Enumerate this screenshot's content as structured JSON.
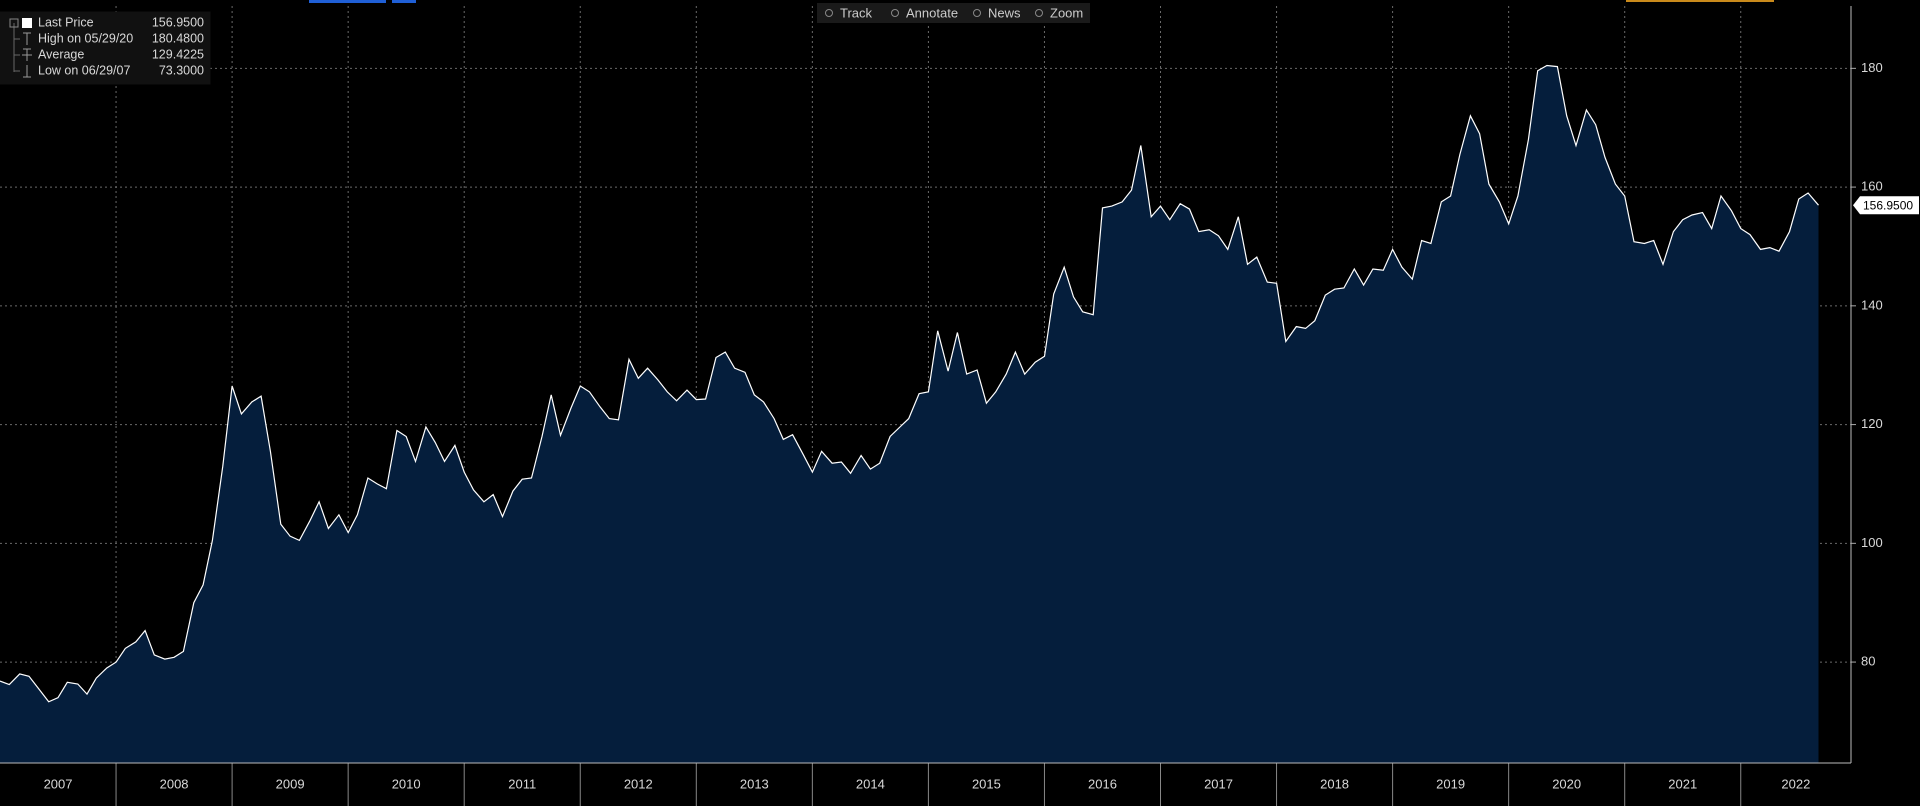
{
  "chart_data": {
    "type": "area",
    "x": [
      2007.0,
      2007.08,
      2007.17,
      2007.25,
      2007.33,
      2007.42,
      2007.5,
      2007.58,
      2007.67,
      2007.75,
      2007.83,
      2007.92,
      2008.0,
      2008.08,
      2008.17,
      2008.25,
      2008.33,
      2008.42,
      2008.5,
      2008.58,
      2008.67,
      2008.75,
      2008.83,
      2008.92,
      2009.0,
      2009.08,
      2009.17,
      2009.25,
      2009.33,
      2009.42,
      2009.5,
      2009.58,
      2009.67,
      2009.75,
      2009.83,
      2009.92,
      2010.0,
      2010.08,
      2010.17,
      2010.25,
      2010.33,
      2010.42,
      2010.5,
      2010.58,
      2010.67,
      2010.75,
      2010.83,
      2010.92,
      2011.0,
      2011.08,
      2011.17,
      2011.25,
      2011.33,
      2011.42,
      2011.5,
      2011.58,
      2011.67,
      2011.75,
      2011.83,
      2011.92,
      2012.0,
      2012.08,
      2012.17,
      2012.25,
      2012.33,
      2012.42,
      2012.5,
      2012.58,
      2012.67,
      2012.75,
      2012.83,
      2012.92,
      2013.0,
      2013.08,
      2013.17,
      2013.25,
      2013.33,
      2013.42,
      2013.5,
      2013.58,
      2013.67,
      2013.75,
      2013.83,
      2013.92,
      2014.0,
      2014.08,
      2014.17,
      2014.25,
      2014.33,
      2014.42,
      2014.5,
      2014.58,
      2014.67,
      2014.75,
      2014.83,
      2014.92,
      2015.0,
      2015.08,
      2015.17,
      2015.25,
      2015.33,
      2015.42,
      2015.5,
      2015.58,
      2015.67,
      2015.75,
      2015.83,
      2015.92,
      2016.0,
      2016.08,
      2016.17,
      2016.25,
      2016.33,
      2016.42,
      2016.5,
      2016.58,
      2016.67,
      2016.75,
      2016.83,
      2016.92,
      2017.0,
      2017.08,
      2017.17,
      2017.25,
      2017.33,
      2017.42,
      2017.5,
      2017.58,
      2017.67,
      2017.75,
      2017.83,
      2017.92,
      2018.0,
      2018.08,
      2018.17,
      2018.25,
      2018.33,
      2018.42,
      2018.5,
      2018.58,
      2018.67,
      2018.75,
      2018.83,
      2018.92,
      2019.0,
      2019.08,
      2019.17,
      2019.25,
      2019.33,
      2019.42,
      2019.5,
      2019.58,
      2019.67,
      2019.75,
      2019.83,
      2019.92,
      2020.0,
      2020.08,
      2020.17,
      2020.25,
      2020.33,
      2020.42,
      2020.5,
      2020.58,
      2020.67,
      2020.75,
      2020.83,
      2020.92,
      2021.0,
      2021.08,
      2021.17,
      2021.25,
      2021.33,
      2021.42,
      2021.5,
      2021.58,
      2021.67,
      2021.75,
      2021.83,
      2021.92,
      2022.0,
      2022.08,
      2022.17,
      2022.25,
      2022.33,
      2022.42,
      2022.5,
      2022.58,
      2022.67
    ],
    "series": [
      {
        "name": "Last Price",
        "color": "#ffffff",
        "fill": "#051e3c",
        "values": [
          76.8,
          76.2,
          78.0,
          77.6,
          75.6,
          73.3,
          74.0,
          76.6,
          76.3,
          74.6,
          77.3,
          79.0,
          80.0,
          82.3,
          83.4,
          85.3,
          81.2,
          80.5,
          80.8,
          81.8,
          90.0,
          93.0,
          100.5,
          113.0,
          126.5,
          121.8,
          123.8,
          124.8,
          115.5,
          103.2,
          101.2,
          100.5,
          103.8,
          107.0,
          102.5,
          104.8,
          101.8,
          104.8,
          111.0,
          110.0,
          109.2,
          119.0,
          118.0,
          113.8,
          119.6,
          117.0,
          113.8,
          116.5,
          112.0,
          109.0,
          107.0,
          108.2,
          104.5,
          108.8,
          110.8,
          111.0,
          118.0,
          125.0,
          118.2,
          122.8,
          126.5,
          125.5,
          123.0,
          121.0,
          120.8,
          131.0,
          127.8,
          129.5,
          127.5,
          125.5,
          124.0,
          125.8,
          124.2,
          124.3,
          131.3,
          132.2,
          129.5,
          128.8,
          125.0,
          123.8,
          121.0,
          117.5,
          118.3,
          115.0,
          112.0,
          115.5,
          113.5,
          113.7,
          111.8,
          114.8,
          112.5,
          113.5,
          118.0,
          119.5,
          121.0,
          125.2,
          125.5,
          135.8,
          129.0,
          135.5,
          128.5,
          129.2,
          123.6,
          125.5,
          128.5,
          132.2,
          128.5,
          130.5,
          131.5,
          142.0,
          146.5,
          141.5,
          139.0,
          138.5,
          156.5,
          156.8,
          157.5,
          159.5,
          167.0,
          155.0,
          156.8,
          154.5,
          157.2,
          156.3,
          152.5,
          152.8,
          151.8,
          149.5,
          155.0,
          147.0,
          148.2,
          144.0,
          143.8,
          134.0,
          136.5,
          136.2,
          137.5,
          141.8,
          142.8,
          143.0,
          146.2,
          143.5,
          146.2,
          146.0,
          149.5,
          146.5,
          144.5,
          151.0,
          150.5,
          157.5,
          158.5,
          165.5,
          172.0,
          169.0,
          160.5,
          157.5,
          153.8,
          158.5,
          168.0,
          179.6,
          180.48,
          180.3,
          172.0,
          167.0,
          173.0,
          170.5,
          165.0,
          160.5,
          158.5,
          150.8,
          150.5,
          151.0,
          147.0,
          152.5,
          154.5,
          155.3,
          155.7,
          153.0,
          158.5,
          156.0,
          153.0,
          152.0,
          149.5,
          149.8,
          149.2,
          152.5,
          158.0,
          159.0,
          156.95
        ]
      }
    ],
    "xlim": [
      2007,
      2022.95
    ],
    "xticks": [
      2007,
      2008,
      2009,
      2010,
      2011,
      2012,
      2013,
      2014,
      2015,
      2016,
      2017,
      2018,
      2019,
      2020,
      2021,
      2022
    ],
    "ylim": [
      63,
      190.5
    ],
    "yticks": [
      80,
      100,
      120,
      140,
      160,
      180
    ],
    "grid": true
  },
  "stats": [
    {
      "label": "Last Price",
      "value": "156.9500"
    },
    {
      "label": "High on 05/29/20",
      "value": "180.4800"
    },
    {
      "label": "Average",
      "value": "129.4225"
    },
    {
      "label": "Low on 06/29/07",
      "value": "73.3000"
    }
  ],
  "toolbar": [
    "Track",
    "Annotate",
    "News",
    "Zoom"
  ]
}
